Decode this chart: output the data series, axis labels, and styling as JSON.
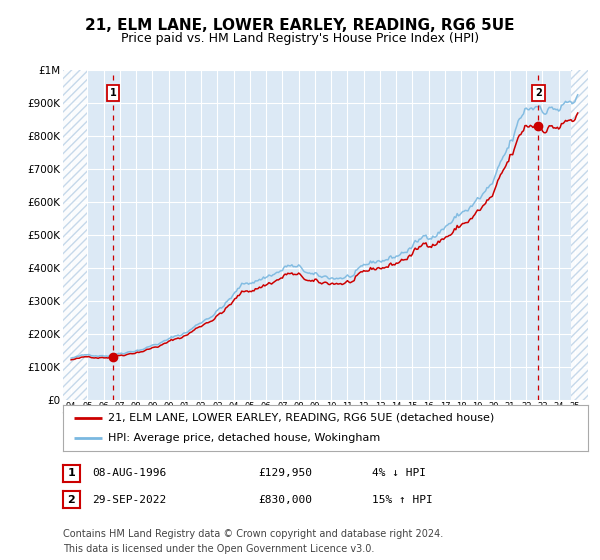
{
  "title": "21, ELM LANE, LOWER EARLEY, READING, RG6 5UE",
  "subtitle": "Price paid vs. HM Land Registry's House Price Index (HPI)",
  "ylim": [
    0,
    1000000
  ],
  "yticks": [
    0,
    100000,
    200000,
    300000,
    400000,
    500000,
    600000,
    700000,
    800000,
    900000,
    1000000
  ],
  "ytick_labels": [
    "£0",
    "£100K",
    "£200K",
    "£300K",
    "£400K",
    "£500K",
    "£600K",
    "£700K",
    "£800K",
    "£900K",
    "£1M"
  ],
  "xlim_start": 1993.5,
  "xlim_end": 2025.8,
  "xtick_years": [
    1994,
    1995,
    1996,
    1997,
    1998,
    1999,
    2000,
    2001,
    2002,
    2003,
    2004,
    2005,
    2006,
    2007,
    2008,
    2009,
    2010,
    2011,
    2012,
    2013,
    2014,
    2015,
    2016,
    2017,
    2018,
    2019,
    2020,
    2021,
    2022,
    2023,
    2024,
    2025
  ],
  "background_color": "#dce9f5",
  "hatch_color": "#c0d4e8",
  "hpi_color": "#7ab8e0",
  "price_color": "#cc0000",
  "grid_color": "#ffffff",
  "sale1_year": 1996.583,
  "sale1_price": 129950,
  "sale2_year": 2022.75,
  "sale2_price": 830000,
  "legend_line1": "21, ELM LANE, LOWER EARLEY, READING, RG6 5UE (detached house)",
  "legend_line2": "HPI: Average price, detached house, Wokingham",
  "sale1_date": "08-AUG-1996",
  "sale1_price_str": "£129,950",
  "sale1_hpi": "4% ↓ HPI",
  "sale2_date": "29-SEP-2022",
  "sale2_price_str": "£830,000",
  "sale2_hpi": "15% ↑ HPI",
  "footer": "Contains HM Land Registry data © Crown copyright and database right 2024.\nThis data is licensed under the Open Government Licence v3.0."
}
